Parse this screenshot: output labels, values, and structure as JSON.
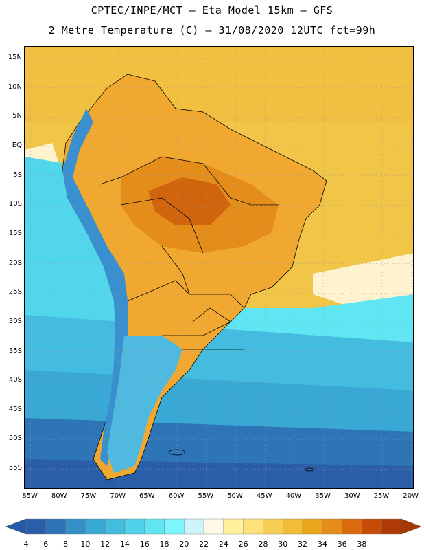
{
  "title": {
    "line1": "CPTEC/INPE/MCT –  Eta Model 15km – GFS",
    "line2": "2 Metre Temperature (C) – 31/08/2020 12UTC fct=99h"
  },
  "map": {
    "region": "South America",
    "lat_labels": [
      "15N",
      "10N",
      "5N",
      "EQ",
      "5S",
      "10S",
      "15S",
      "20S",
      "25S",
      "30S",
      "35S",
      "40S",
      "45S",
      "50S",
      "55S"
    ],
    "lon_labels": [
      "85W",
      "80W",
      "75W",
      "70W",
      "65W",
      "60W",
      "55W",
      "50W",
      "45W",
      "40W",
      "35W",
      "30W",
      "25W",
      "20W"
    ]
  },
  "colorbar": {
    "labels": [
      "4",
      "6",
      "8",
      "10",
      "12",
      "14",
      "16",
      "18",
      "20",
      "22",
      "24",
      "26",
      "28",
      "30",
      "32",
      "34",
      "36",
      "38"
    ],
    "colors": [
      "#2a5ea8",
      "#2e75b8",
      "#3590c8",
      "#3aa8d4",
      "#43bce0",
      "#4fd2ea",
      "#5fe6f2",
      "#7cf6fb",
      "#cdf3fb",
      "#fff8e6",
      "#fff19a",
      "#fde27a",
      "#f8cf55",
      "#f2bc36",
      "#eba71c",
      "#e48d1a",
      "#dc6b10",
      "#c84a08",
      "#b03a05"
    ],
    "under_color": "#245aa6",
    "over_color": "#a83800"
  }
}
